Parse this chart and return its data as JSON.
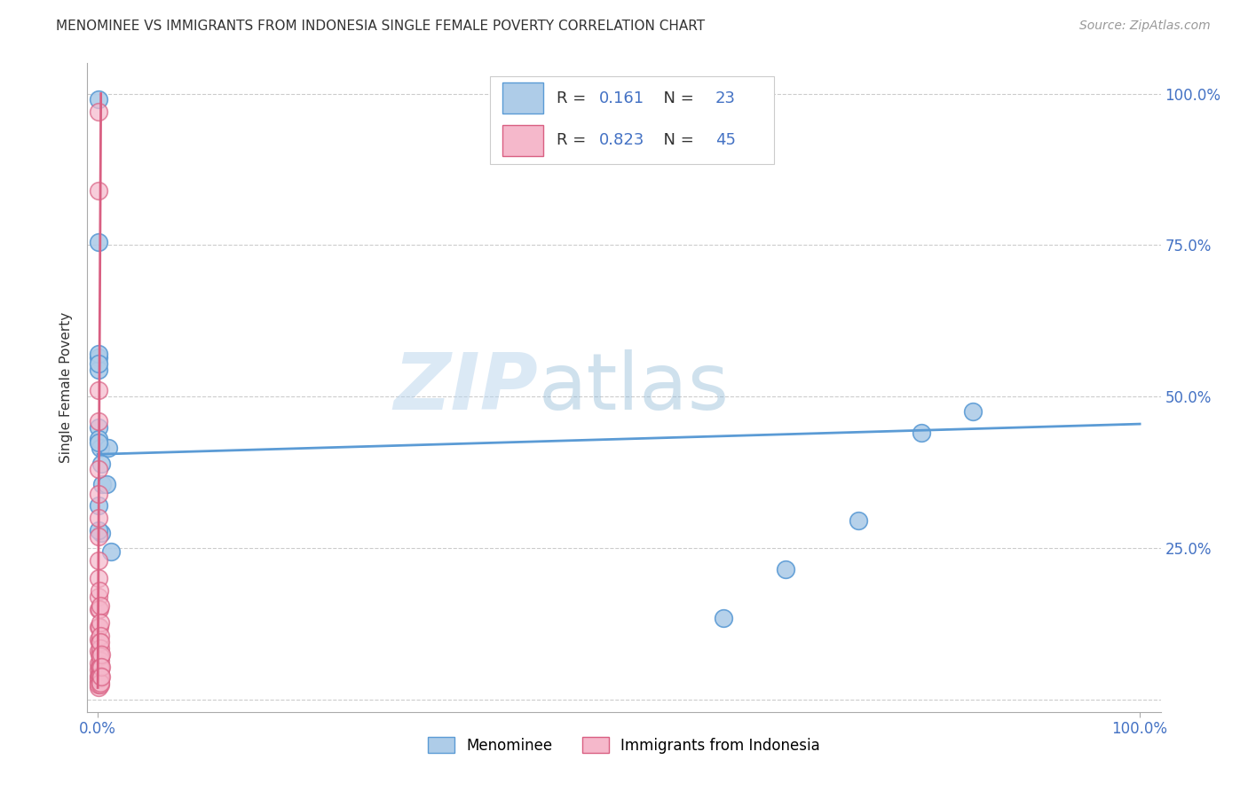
{
  "title": "MENOMINEE VS IMMIGRANTS FROM INDONESIA SINGLE FEMALE POVERTY CORRELATION CHART",
  "source": "Source: ZipAtlas.com",
  "ylabel": "Single Female Poverty",
  "R1": "0.161",
  "N1": "23",
  "R2": "0.823",
  "N2": "45",
  "color_blue": "#aecce8",
  "color_pink": "#f5b8cb",
  "line_blue": "#5b9bd5",
  "line_pink": "#d95f82",
  "legend_label1": "Menominee",
  "legend_label2": "Immigrants from Indonesia",
  "background_color": "#ffffff",
  "grid_color": "#cccccc",
  "axis_color": "#4472c4",
  "text_color_dark": "#333333",
  "source_color": "#999999",
  "menominee_x": [
    0.001,
    0.001,
    0.001,
    0.001,
    0.001,
    0.002,
    0.003,
    0.003,
    0.004,
    0.008,
    0.01,
    0.013,
    0.6,
    0.66,
    0.73,
    0.79,
    0.84,
    0.001,
    0.001,
    0.001,
    0.001,
    0.001,
    0.001
  ],
  "menominee_y": [
    0.755,
    0.565,
    0.545,
    0.45,
    0.43,
    0.415,
    0.39,
    0.275,
    0.355,
    0.355,
    0.415,
    0.245,
    0.135,
    0.215,
    0.295,
    0.44,
    0.475,
    0.99,
    0.57,
    0.425,
    0.32,
    0.28,
    0.555
  ],
  "indonesia_x": [
    0.0003,
    0.0003,
    0.0005,
    0.0005,
    0.0005,
    0.0005,
    0.0005,
    0.001,
    0.001,
    0.001,
    0.001,
    0.001,
    0.001,
    0.001,
    0.001,
    0.001,
    0.001,
    0.001,
    0.001,
    0.001,
    0.001,
    0.001,
    0.0015,
    0.0015,
    0.0015,
    0.0015,
    0.0015,
    0.0015,
    0.0015,
    0.002,
    0.002,
    0.002,
    0.002,
    0.002,
    0.002,
    0.002,
    0.002,
    0.0025,
    0.0025,
    0.0025,
    0.0025,
    0.0025,
    0.003,
    0.003,
    0.003
  ],
  "indonesia_y": [
    0.97,
    0.84,
    0.51,
    0.46,
    0.38,
    0.34,
    0.3,
    0.27,
    0.23,
    0.2,
    0.17,
    0.15,
    0.12,
    0.1,
    0.08,
    0.06,
    0.05,
    0.04,
    0.03,
    0.02,
    0.035,
    0.025,
    0.18,
    0.15,
    0.12,
    0.095,
    0.075,
    0.055,
    0.04,
    0.155,
    0.128,
    0.105,
    0.085,
    0.065,
    0.05,
    0.035,
    0.025,
    0.095,
    0.072,
    0.055,
    0.04,
    0.028,
    0.075,
    0.055,
    0.038
  ],
  "men_line_x": [
    0.0,
    1.0
  ],
  "men_line_y": [
    0.405,
    0.455
  ],
  "ind_line_x": [
    0.0,
    0.003
  ],
  "ind_line_y": [
    0.02,
    1.0
  ],
  "xlim": [
    -0.01,
    1.02
  ],
  "ylim": [
    -0.02,
    1.05
  ],
  "xticks": [
    0.0,
    1.0
  ],
  "xtick_labels": [
    "0.0%",
    "100.0%"
  ],
  "yticks": [
    0.0,
    0.25,
    0.5,
    0.75,
    1.0
  ],
  "ytick_labels_right": [
    "",
    "25.0%",
    "50.0%",
    "75.0%",
    "100.0%"
  ],
  "watermark_zip": "ZIP",
  "watermark_atlas": "atlas"
}
